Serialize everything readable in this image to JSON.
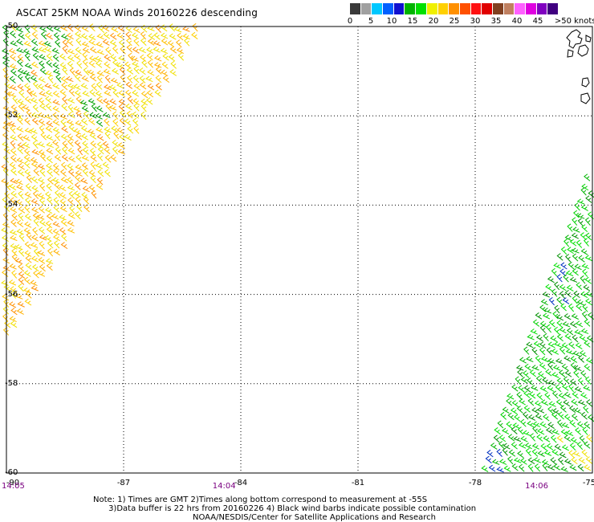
{
  "header": {
    "title": "ASCAT 25KM NOAA Winds 20160226 descending"
  },
  "legend": {
    "colors": [
      "#3a3a3a",
      "#a0a0a0",
      "#00c8ff",
      "#0060ff",
      "#1010d0",
      "#00b400",
      "#00e000",
      "#f0f000",
      "#ffd000",
      "#ff9000",
      "#ff5000",
      "#ff1010",
      "#e00000",
      "#804020",
      "#c08060",
      "#ff60ff",
      "#e000e0",
      "#8000c0",
      "#400080"
    ],
    "labels": [
      {
        "text": "0",
        "pos": 0
      },
      {
        "text": "5",
        "pos": 2
      },
      {
        "text": "10",
        "pos": 4
      },
      {
        "text": "15",
        "pos": 6
      },
      {
        "text": "20",
        "pos": 8
      },
      {
        "text": "25",
        "pos": 10
      },
      {
        "text": "30",
        "pos": 12
      },
      {
        "text": "35",
        "pos": 14
      },
      {
        "text": "40",
        "pos": 16
      },
      {
        "text": "45",
        "pos": 18
      },
      {
        "text": ">50 knots",
        "pos": 20
      }
    ]
  },
  "map": {
    "lon_labels": [
      "-90",
      "-87",
      "-84",
      "-81",
      "-78",
      "-75"
    ],
    "lat_labels": [
      "-50",
      "-52",
      "-54",
      "-56",
      "-58",
      "-60"
    ],
    "times": [
      {
        "text": "14:05",
        "lon": -90
      },
      {
        "text": "14:04",
        "lon": -84.6
      },
      {
        "text": "14:06",
        "lon": -76.6
      }
    ]
  },
  "notes": {
    "line1": "Note: 1) Times are GMT 2)Times along bottom correspond to measurement at -55S",
    "line2": "      3)Data buffer is 22 hrs from 20160226 4) Black wind barbs indicate possible contamination",
    "line3": "                                       NOAA/NESDIS/Center for Satellite Applications and Research"
  }
}
